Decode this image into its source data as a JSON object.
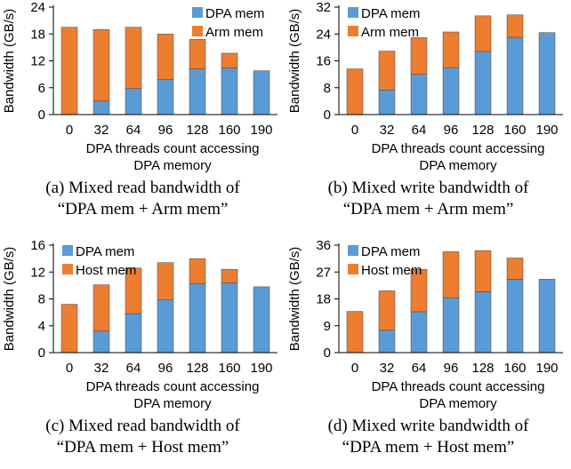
{
  "colors": {
    "dpa": "#5b9bd5",
    "other": "#ed7d31",
    "axis": "#000000"
  },
  "chart_data": [
    {
      "type": "bar",
      "stacked": true,
      "caption": [
        "(a) Mixed read bandwidth of",
        "“DPA mem + Arm mem”"
      ],
      "xlabel": [
        "DPA threads count accessing",
        "DPA memory"
      ],
      "ylabel": "Bandwidth (GB/s)",
      "ylim": [
        0,
        24
      ],
      "yticks": [
        0,
        6,
        12,
        18,
        24
      ],
      "categories": [
        "0",
        "32",
        "64",
        "96",
        "128",
        "160",
        "190"
      ],
      "series": [
        {
          "name": "DPA mem",
          "values": [
            0,
            3.0,
            5.8,
            7.8,
            10.2,
            10.4,
            9.8
          ]
        },
        {
          "name": "Arm mem",
          "values": [
            19.5,
            16.0,
            13.7,
            10.2,
            6.6,
            3.3,
            0
          ]
        }
      ]
    },
    {
      "type": "bar",
      "stacked": true,
      "caption": [
        "(b) Mixed write bandwidth of",
        "“DPA mem + Arm mem”"
      ],
      "xlabel": [
        "DPA threads count accessing",
        "DPA memory"
      ],
      "ylabel": "Bandwidth (GB/s)",
      "ylim": [
        0,
        32
      ],
      "yticks": [
        0,
        8,
        16,
        24,
        32
      ],
      "categories": [
        "0",
        "32",
        "64",
        "96",
        "128",
        "160",
        "190"
      ],
      "series": [
        {
          "name": "DPA mem",
          "values": [
            0,
            7.3,
            12.0,
            14.0,
            18.8,
            23.0,
            24.4
          ]
        },
        {
          "name": "Arm mem",
          "values": [
            13.6,
            11.6,
            10.9,
            10.6,
            10.6,
            6.7,
            0
          ]
        }
      ]
    },
    {
      "type": "bar",
      "stacked": true,
      "caption": [
        "(c) Mixed read bandwidth of",
        "“DPA mem + Host mem”"
      ],
      "xlabel": [
        "DPA threads count accessing",
        "DPA memory"
      ],
      "ylabel": "Bandwidth (GB/s)",
      "ylim": [
        0,
        16
      ],
      "yticks": [
        0,
        4,
        8,
        12,
        16
      ],
      "categories": [
        "0",
        "32",
        "64",
        "96",
        "128",
        "160",
        "190"
      ],
      "series": [
        {
          "name": "DPA mem",
          "values": [
            0,
            3.2,
            5.8,
            7.9,
            10.3,
            10.4,
            9.8
          ]
        },
        {
          "name": "Host mem",
          "values": [
            7.2,
            6.9,
            6.8,
            5.5,
            3.7,
            2.0,
            0
          ]
        }
      ]
    },
    {
      "type": "bar",
      "stacked": true,
      "caption": [
        "(d) Mixed write bandwidth of",
        "“DPA mem + Host mem”"
      ],
      "xlabel": [
        "DPA threads count accessing",
        "DPA memory"
      ],
      "ylabel": "Bandwidth (GB/s)",
      "ylim": [
        0,
        36
      ],
      "yticks": [
        0,
        9,
        18,
        27,
        36
      ],
      "categories": [
        "0",
        "32",
        "64",
        "96",
        "128",
        "160",
        "190"
      ],
      "series": [
        {
          "name": "DPA mem",
          "values": [
            0,
            7.5,
            13.7,
            18.4,
            20.4,
            24.6,
            24.6
          ]
        },
        {
          "name": "Host mem",
          "values": [
            13.8,
            13.2,
            14.2,
            15.4,
            13.8,
            7.1,
            0
          ]
        }
      ]
    }
  ]
}
